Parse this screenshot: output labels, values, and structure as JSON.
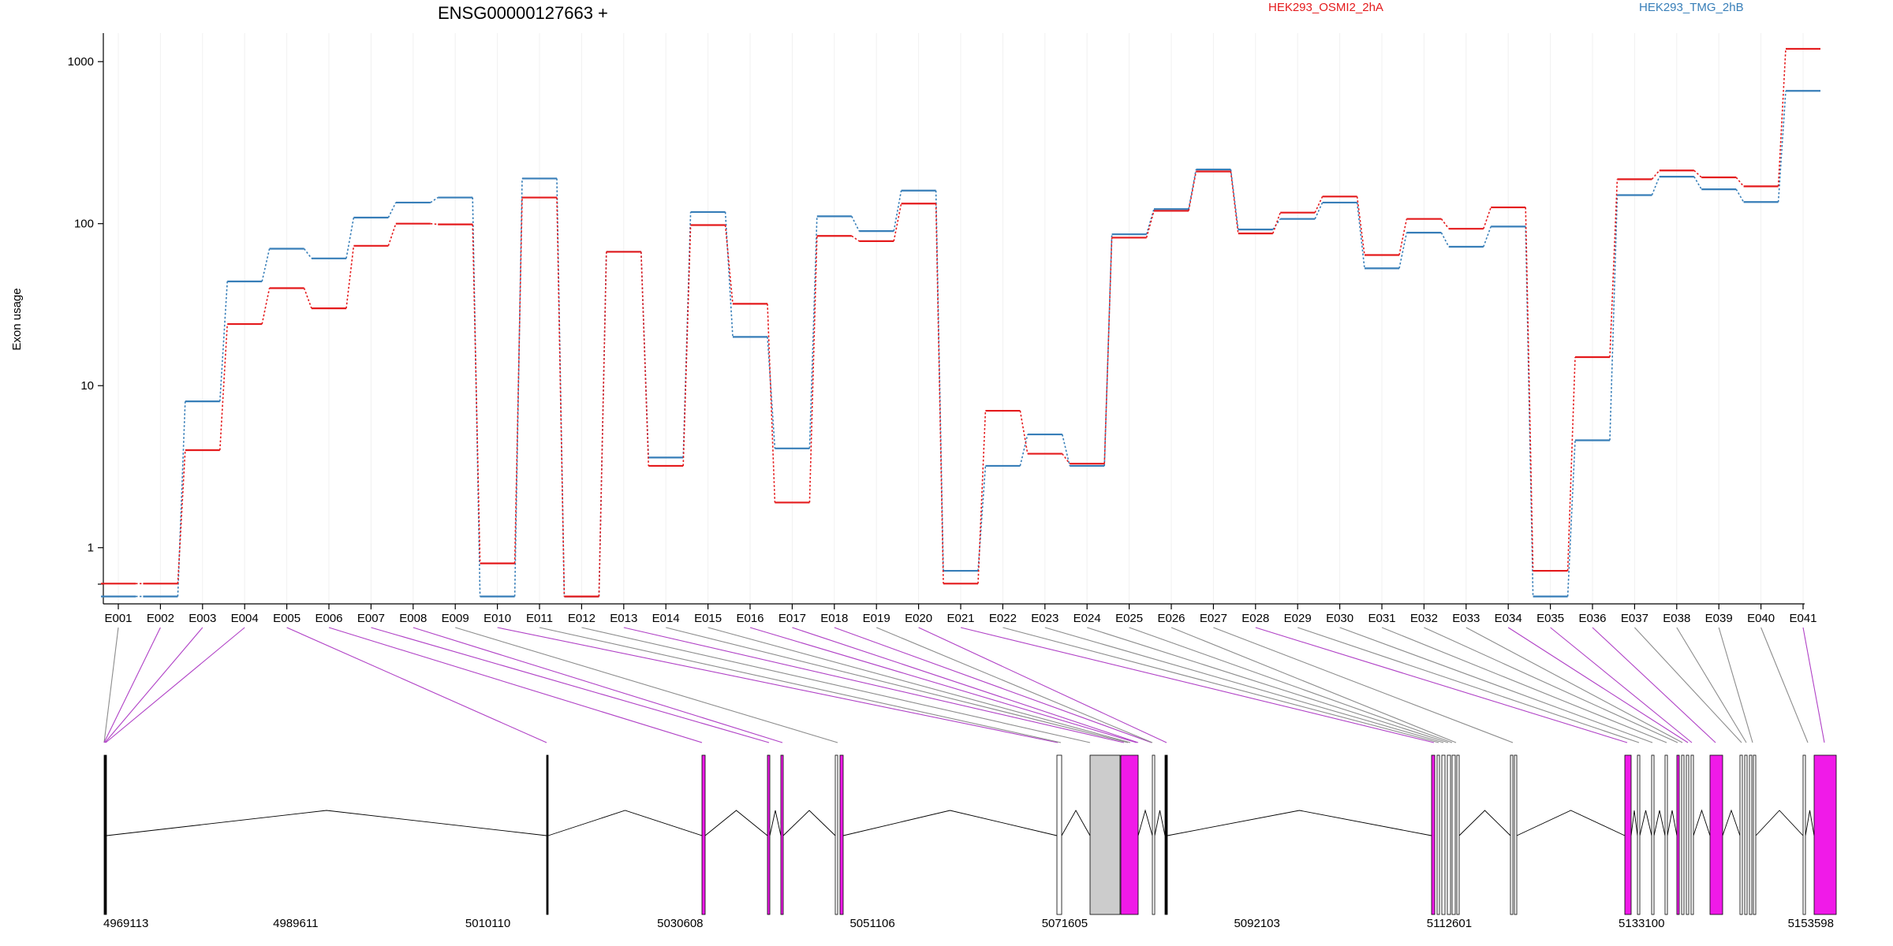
{
  "chart_data": {
    "type": "line",
    "title": "ENSG00000127663 +",
    "ylabel": "Exon usage",
    "yscale": "log",
    "ylim": [
      0.45,
      1500
    ],
    "yticks": [
      1,
      10,
      100,
      1000
    ],
    "ytick_labels": [
      "1",
      "10",
      "100",
      "1000"
    ],
    "categories": [
      "E001",
      "E002",
      "E003",
      "E004",
      "E005",
      "E006",
      "E007",
      "E008",
      "E009",
      "E010",
      "E011",
      "E012",
      "E013",
      "E014",
      "E015",
      "E016",
      "E017",
      "E018",
      "E019",
      "E020",
      "E021",
      "E022",
      "E023",
      "E024",
      "E025",
      "E026",
      "E027",
      "E028",
      "E029",
      "E030",
      "E031",
      "E032",
      "E033",
      "E034",
      "E035",
      "E036",
      "E037",
      "E038",
      "E039",
      "E040",
      "E041"
    ],
    "series": [
      {
        "name": "HEK293_OSMI2_2hA",
        "color": "#e41a1c",
        "values": [
          0.6,
          0.6,
          4,
          24,
          40,
          30,
          73,
          100,
          99,
          0.8,
          145,
          0.5,
          67,
          3.2,
          98,
          32,
          1.9,
          84,
          78,
          133,
          0.6,
          7,
          3.8,
          3.3,
          82,
          120,
          210,
          87,
          117,
          147,
          64,
          107,
          93,
          126,
          0.72,
          15,
          188,
          213,
          193,
          170,
          1200
        ]
      },
      {
        "name": "HEK293_TMG_2hB",
        "color": "#377eb8",
        "values": [
          0.5,
          0.5,
          8,
          44,
          70,
          61,
          109,
          135,
          145,
          0.5,
          190,
          0.5,
          67,
          3.6,
          118,
          20,
          4.1,
          111,
          90,
          160,
          0.72,
          3.2,
          5,
          3.2,
          86,
          123,
          216,
          92,
          107,
          135,
          53,
          88,
          72,
          96,
          0.5,
          4.6,
          150,
          195,
          163,
          136,
          660
        ]
      }
    ],
    "gene_model": {
      "coordinate_ticks": [
        "4969113",
        "4989611",
        "5010110",
        "5030608",
        "5051106",
        "5071605",
        "5092103",
        "5112601",
        "5133100",
        "5153598"
      ],
      "exon_highlight_color": "#f01ae8",
      "exon_plain_color": "#ffffff",
      "exon_shaded_color": "#cccccc",
      "connector_highlight_color": "#b041c6",
      "connector_plain_color": "#8c8c8c"
    }
  }
}
